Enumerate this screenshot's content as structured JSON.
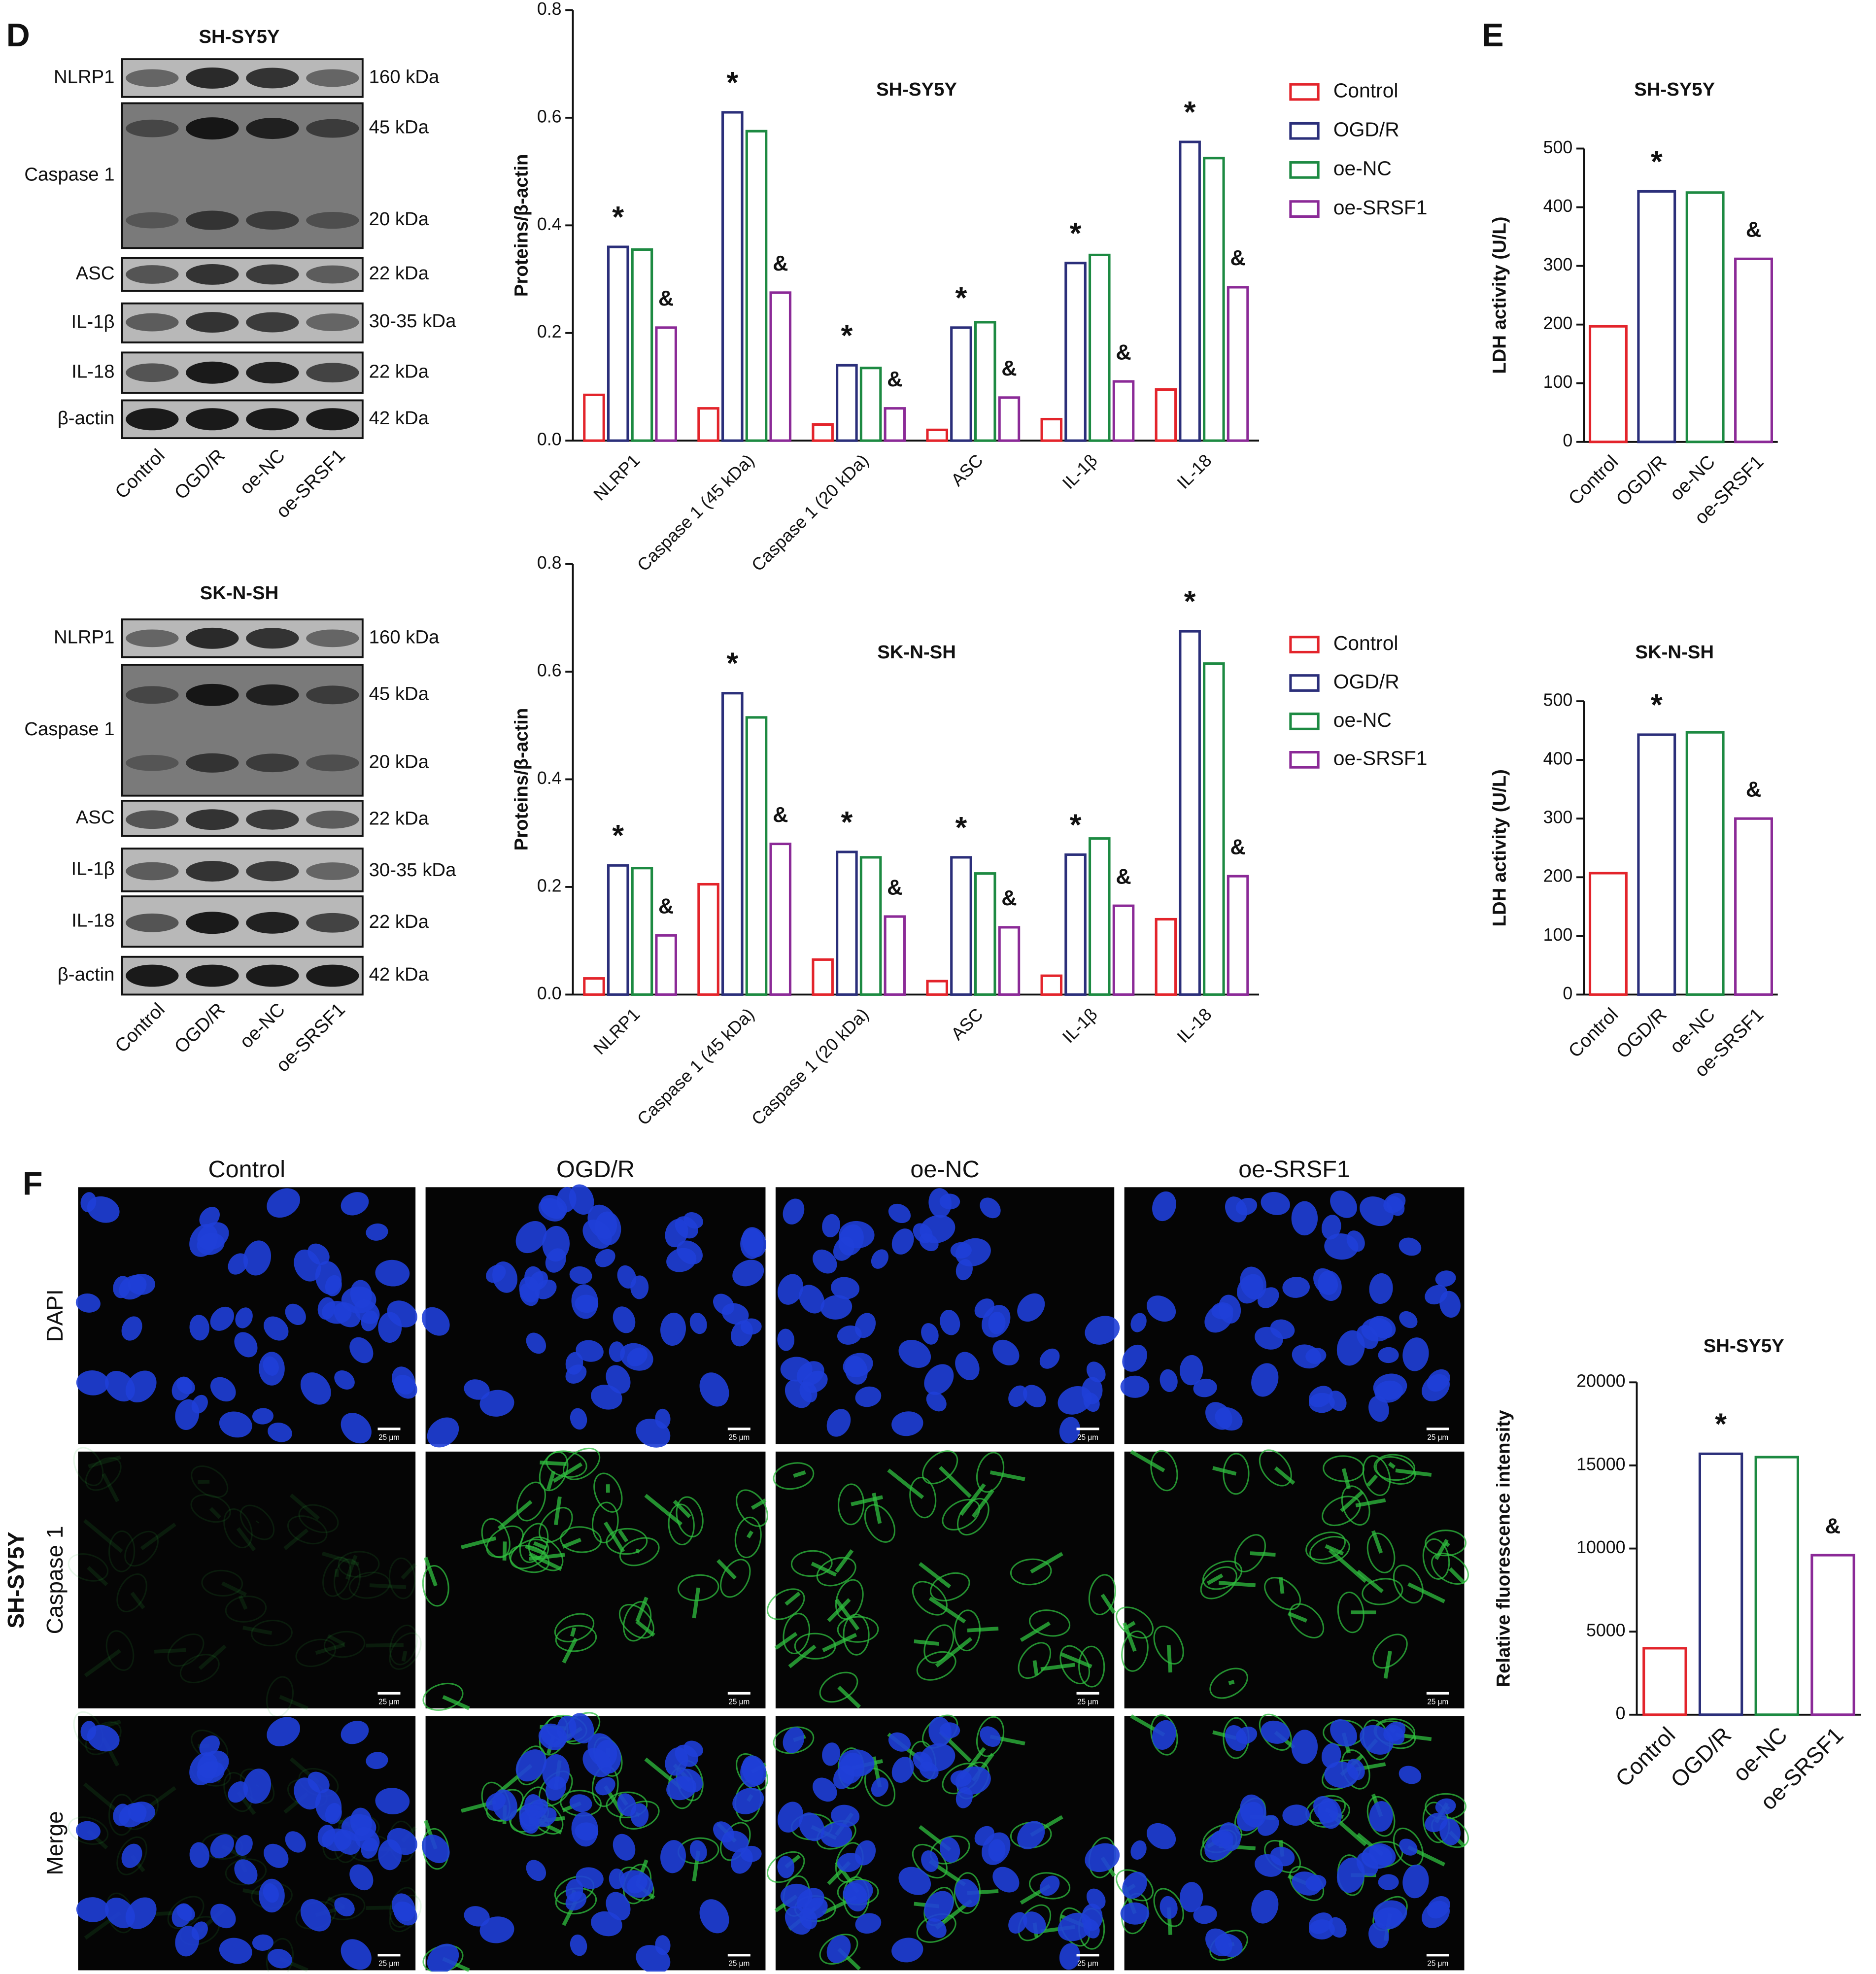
{
  "panel_labels": [
    "D",
    "E",
    "F"
  ],
  "blots": [
    {
      "title": "SH-SY5Y",
      "lanes": [
        "Control",
        "OGD/R",
        "oe-NC",
        "oe-SRSF1"
      ],
      "rows": [
        {
          "label": "NLRP1",
          "sizes": [
            "160 kDa"
          ]
        },
        {
          "label": "Caspase 1",
          "sizes": [
            "45 kDa",
            "20 kDa"
          ]
        },
        {
          "label": "ASC",
          "sizes": [
            "22 kDa"
          ]
        },
        {
          "label": "IL-1β",
          "sizes": [
            "30-35 kDa"
          ]
        },
        {
          "label": "IL-18",
          "sizes": [
            "22 kDa"
          ]
        },
        {
          "label": "β-actin",
          "sizes": [
            "42 kDa"
          ]
        }
      ]
    },
    {
      "title": "SK-N-SH",
      "lanes": [
        "Control",
        "OGD/R",
        "oe-NC",
        "oe-SRSF1"
      ],
      "rows": [
        {
          "label": "NLRP1",
          "sizes": [
            "160 kDa"
          ]
        },
        {
          "label": "Caspase 1",
          "sizes": [
            "45 kDa",
            "20 kDa"
          ]
        },
        {
          "label": "ASC",
          "sizes": [
            "22 kDa"
          ]
        },
        {
          "label": "IL-1β",
          "sizes": [
            "30-35 kDa"
          ]
        },
        {
          "label": "IL-18",
          "sizes": [
            "22 kDa"
          ]
        },
        {
          "label": "β-actin",
          "sizes": [
            "42 kDa"
          ]
        }
      ]
    }
  ],
  "chart_data": [
    {
      "type": "grouped-bar",
      "title": "SH-SY5Y",
      "y_label": "Proteins/β-actin",
      "categories": [
        "NLRP1",
        "Caspase 1 (45 kDa)",
        "Caspase 1 (20 kDa)",
        "ASC",
        "IL-1β",
        "IL-18"
      ],
      "ylim": [
        0,
        0.8
      ],
      "yticks": [
        {
          "value": 0,
          "label": "0.0"
        },
        0.2,
        0.4,
        0.6,
        0.8
      ],
      "legend": "right",
      "series": [
        {
          "name": "Control",
          "color": "#e3242b",
          "values": [
            0.085,
            0.06,
            0.03,
            0.02,
            0.04,
            0.095
          ]
        },
        {
          "name": "OGD/R",
          "color": "#2b2f7a",
          "values": [
            0.36,
            0.61,
            0.14,
            0.21,
            0.33,
            0.555
          ],
          "annotations": [
            "*",
            "*",
            "*",
            "*",
            "*",
            "*"
          ]
        },
        {
          "name": "oe-NC",
          "color": "#1d8a42",
          "values": [
            0.355,
            0.575,
            0.135,
            0.22,
            0.345,
            0.525
          ]
        },
        {
          "name": "oe-SRSF1",
          "color": "#8b2a97",
          "values": [
            0.21,
            0.275,
            0.06,
            0.08,
            0.11,
            0.285
          ],
          "annotations": [
            "&",
            "&",
            "&",
            "&",
            "&",
            "&"
          ]
        }
      ]
    },
    {
      "type": "grouped-bar",
      "title": "SK-N-SH",
      "y_label": "Proteins/β-actin",
      "categories": [
        "NLRP1",
        "Caspase 1 (45 kDa)",
        "Caspase 1 (20 kDa)",
        "ASC",
        "IL-1β",
        "IL-18"
      ],
      "ylim": [
        0,
        0.8
      ],
      "yticks": [
        {
          "value": 0,
          "label": "0.0"
        },
        0.2,
        0.4,
        0.6,
        0.8
      ],
      "legend": "right",
      "series": [
        {
          "name": "Control",
          "color": "#e3242b",
          "values": [
            0.03,
            0.205,
            0.065,
            0.025,
            0.035,
            0.14
          ]
        },
        {
          "name": "OGD/R",
          "color": "#2b2f7a",
          "values": [
            0.24,
            0.56,
            0.265,
            0.255,
            0.26,
            0.675
          ],
          "annotations": [
            "*",
            "*",
            "*",
            "*",
            "*",
            "*"
          ]
        },
        {
          "name": "oe-NC",
          "color": "#1d8a42",
          "values": [
            0.235,
            0.515,
            0.255,
            0.225,
            0.29,
            0.615
          ]
        },
        {
          "name": "oe-SRSF1",
          "color": "#8b2a97",
          "values": [
            0.11,
            0.28,
            0.145,
            0.125,
            0.165,
            0.22
          ],
          "annotations": [
            "&",
            "&",
            "&",
            "&",
            "&",
            "&"
          ]
        }
      ]
    },
    {
      "type": "bar",
      "title": "SH-SY5Y",
      "y_label": "LDH activity (U/L)",
      "categories": [
        "Control",
        "OGD/R",
        "oe-NC",
        "oe-SRSF1"
      ],
      "values": [
        197,
        427,
        425,
        312
      ],
      "colors": [
        "#e3242b",
        "#2b2f7a",
        "#1d8a42",
        "#8b2a97"
      ],
      "annotations": [
        null,
        "*",
        null,
        "&"
      ],
      "ylim": [
        0,
        500
      ],
      "yticks": [
        0,
        100,
        200,
        300,
        400,
        500
      ]
    },
    {
      "type": "bar",
      "title": "SK-N-SH",
      "y_label": "LDH activity (U/L)",
      "categories": [
        "Control",
        "OGD/R",
        "oe-NC",
        "oe-SRSF1"
      ],
      "values": [
        207,
        443,
        447,
        300
      ],
      "colors": [
        "#e3242b",
        "#2b2f7a",
        "#1d8a42",
        "#8b2a97"
      ],
      "annotations": [
        null,
        "*",
        null,
        "&"
      ],
      "ylim": [
        0,
        500
      ],
      "yticks": [
        0,
        100,
        200,
        300,
        400,
        500
      ]
    },
    {
      "type": "bar",
      "title": "SH-SY5Y",
      "y_label": "Relative fluorescence intensity",
      "categories": [
        "Control",
        "OGD/R",
        "oe-NC",
        "oe-SRSF1"
      ],
      "values": [
        4000,
        15700,
        15500,
        9600
      ],
      "colors": [
        "#e3242b",
        "#2b2f7a",
        "#1d8a42",
        "#8b2a97"
      ],
      "annotations": [
        null,
        "*",
        null,
        "&"
      ],
      "ylim": [
        0,
        20000
      ],
      "yticks": [
        0,
        5000,
        10000,
        15000,
        20000
      ]
    }
  ],
  "microscopy": {
    "cell_line": "SH-SY5Y",
    "columns": [
      "Control",
      "OGD/R",
      "oe-NC",
      "oe-SRSF1"
    ],
    "rows": [
      "DAPI",
      "Caspase 1",
      "Merge"
    ],
    "scale_bar": "25 μm"
  }
}
